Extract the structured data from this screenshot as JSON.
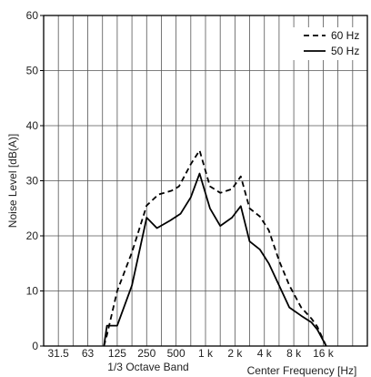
{
  "chart_data": {
    "type": "line",
    "xlabel_left": "1/3 Octave Band",
    "xlabel_right": "Center Frequency [Hz]",
    "ylabel": "Noise Level [dB(A)]",
    "ylim": [
      0,
      60
    ],
    "yticks": [
      "0",
      "10",
      "20",
      "30",
      "40",
      "50",
      "60"
    ],
    "xtick_labels": [
      "31.5",
      "63",
      "125",
      "250",
      "500",
      "1 k",
      "2 k",
      "4 k",
      "8 k",
      "16 k"
    ],
    "x_bands": 22,
    "grid": true,
    "legend_position": "top-right",
    "series": [
      {
        "name": "60 Hz",
        "style": "dashed",
        "color": "#000000",
        "points": [
          [
            4.1,
            0
          ],
          [
            4.3,
            2
          ],
          [
            5,
            10
          ],
          [
            6,
            17
          ],
          [
            7,
            25.5
          ],
          [
            7.8,
            27.5
          ],
          [
            8.7,
            28.2
          ],
          [
            9.2,
            29
          ],
          [
            10,
            33
          ],
          [
            10.6,
            35.5
          ],
          [
            11.3,
            29
          ],
          [
            12,
            27.8
          ],
          [
            12.8,
            28.5
          ],
          [
            13.4,
            30.8
          ],
          [
            14,
            25
          ],
          [
            14.7,
            23.5
          ],
          [
            15.3,
            21
          ],
          [
            16,
            15.5
          ],
          [
            16.7,
            11
          ],
          [
            17.5,
            7
          ],
          [
            18.2,
            5
          ],
          [
            18.6,
            3.5
          ],
          [
            19.2,
            0
          ]
        ]
      },
      {
        "name": "50 Hz",
        "style": "solid",
        "color": "#000000",
        "points": [
          [
            4.1,
            0
          ],
          [
            4.3,
            3.7
          ],
          [
            5,
            3.7
          ],
          [
            6,
            11
          ],
          [
            7,
            23.3
          ],
          [
            7.7,
            21.4
          ],
          [
            8.6,
            22.8
          ],
          [
            9.3,
            24
          ],
          [
            10,
            27
          ],
          [
            10.6,
            31.3
          ],
          [
            11.3,
            25
          ],
          [
            12,
            21.8
          ],
          [
            12.8,
            23.3
          ],
          [
            13.4,
            25.4
          ],
          [
            14,
            19
          ],
          [
            14.7,
            17.5
          ],
          [
            15.3,
            15
          ],
          [
            16,
            11
          ],
          [
            16.7,
            7
          ],
          [
            17.5,
            5.5
          ],
          [
            18.2,
            4.3
          ],
          [
            18.6,
            3
          ],
          [
            19.2,
            0
          ]
        ]
      }
    ]
  }
}
